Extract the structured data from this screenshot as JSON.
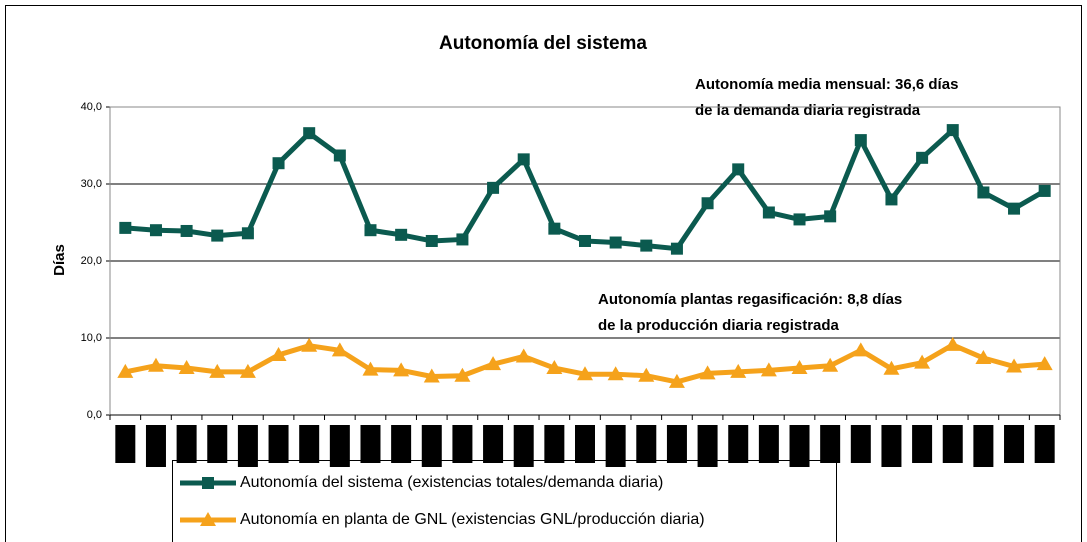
{
  "chart_data": {
    "type": "line",
    "title": "Autonomía del sistema",
    "y_label": "Días",
    "annotations": [
      "Autonomía media mensual: 36,6 días",
      "de la demanda diaria registrada",
      "Autonomía plantas regasificación: 8,8 días",
      "de la producción diaria registrada"
    ],
    "categories": [
      null,
      null,
      null,
      null,
      null,
      null,
      null,
      null,
      null,
      null,
      null,
      null,
      null,
      null,
      null,
      null,
      null,
      null,
      null,
      null,
      null,
      null,
      null,
      null,
      null,
      null,
      null,
      null,
      null,
      null,
      null
    ],
    "series": [
      {
        "name": "Autonomía del sistema (existencias totales/demanda diaria)",
        "color": "#0b5a4f",
        "marker": "square",
        "values": [
          24.3,
          24.0,
          23.9,
          23.3,
          23.6,
          32.7,
          36.6,
          33.7,
          24.0,
          23.4,
          22.6,
          22.8,
          29.5,
          33.2,
          24.2,
          22.6,
          22.4,
          22.0,
          21.6,
          27.5,
          31.9,
          26.3,
          25.4,
          25.8,
          35.7,
          28.0,
          33.4,
          37.0,
          28.9,
          26.8,
          29.1
        ]
      },
      {
        "name": "Autonomía en planta de GNL (existencias GNL/producción diaria)",
        "color": "#f5a21b",
        "marker": "triangle",
        "values": [
          5.6,
          6.4,
          6.1,
          5.6,
          5.6,
          7.8,
          9.0,
          8.4,
          5.9,
          5.8,
          5.0,
          5.1,
          6.6,
          7.6,
          6.1,
          5.3,
          5.3,
          5.1,
          4.3,
          5.4,
          5.6,
          5.8,
          6.1,
          6.4,
          8.4,
          6.0,
          6.8,
          9.1,
          7.4,
          6.3,
          6.6
        ]
      }
    ],
    "ylim": [
      0,
      40
    ],
    "yticks": [
      {
        "value": 0,
        "label": "0,0"
      },
      {
        "value": 10,
        "label": "10,0"
      },
      {
        "value": 20,
        "label": "20,0"
      },
      {
        "value": 30,
        "label": "30,0"
      },
      {
        "value": 40,
        "label": "40,0"
      }
    ],
    "grid": true
  }
}
